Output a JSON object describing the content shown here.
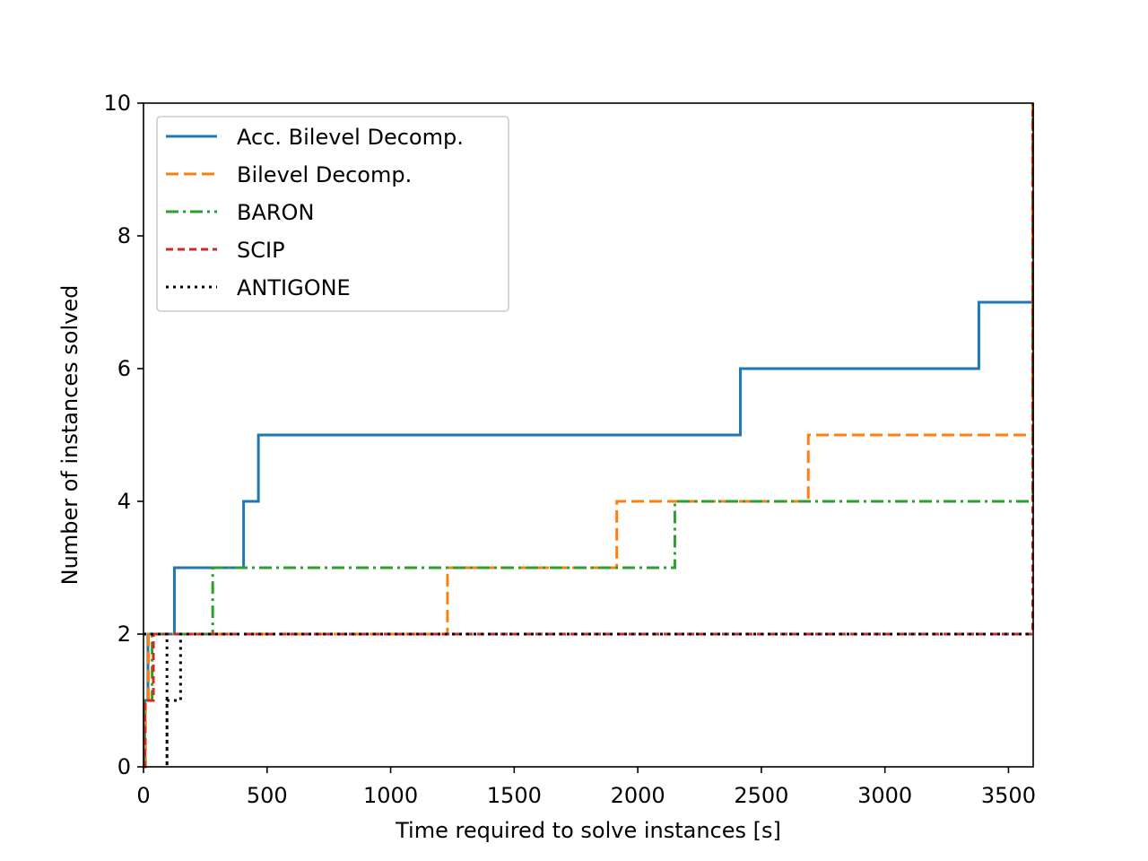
{
  "chart_data": {
    "type": "line",
    "step": true,
    "xlabel": "Time required to solve instances [s]",
    "ylabel": "Number of instances solved",
    "xlim": [
      0,
      3600
    ],
    "ylim": [
      0,
      10
    ],
    "xticks": [
      0,
      500,
      1000,
      1500,
      2000,
      2500,
      3000,
      3500
    ],
    "yticks": [
      0,
      2,
      4,
      6,
      8,
      10
    ],
    "xtick_labels": [
      "0",
      "500",
      "1000",
      "1500",
      "2000",
      "2500",
      "3000",
      "3500"
    ],
    "ytick_labels": [
      "0",
      "2",
      "4",
      "6",
      "8",
      "10"
    ],
    "grid": false,
    "legend_position": "top-left",
    "series": [
      {
        "name": "Acc. Bilevel Decomp.",
        "color": "#1f77b4",
        "dash": "solid",
        "points": [
          [
            0,
            0
          ],
          [
            5,
            0
          ],
          [
            5,
            1
          ],
          [
            18,
            1
          ],
          [
            18,
            2
          ],
          [
            125,
            2
          ],
          [
            125,
            3
          ],
          [
            405,
            3
          ],
          [
            405,
            4
          ],
          [
            465,
            4
          ],
          [
            465,
            5
          ],
          [
            2415,
            5
          ],
          [
            2415,
            6
          ],
          [
            3380,
            6
          ],
          [
            3380,
            7
          ],
          [
            3600,
            7
          ]
        ]
      },
      {
        "name": "Bilevel Decomp.",
        "color": "#ff7f0e",
        "dash": "dashed",
        "points": [
          [
            0,
            0
          ],
          [
            8,
            0
          ],
          [
            8,
            1
          ],
          [
            20,
            1
          ],
          [
            20,
            2
          ],
          [
            1230,
            2
          ],
          [
            1230,
            3
          ],
          [
            1915,
            3
          ],
          [
            1915,
            4
          ],
          [
            2690,
            4
          ],
          [
            2690,
            5
          ],
          [
            3598,
            5
          ],
          [
            3598,
            10
          ]
        ]
      },
      {
        "name": "BARON",
        "color": "#2ca02c",
        "dash": "dashdot",
        "points": [
          [
            0,
            0
          ],
          [
            3,
            0
          ],
          [
            3,
            1
          ],
          [
            35,
            1
          ],
          [
            35,
            2
          ],
          [
            280,
            2
          ],
          [
            280,
            3
          ],
          [
            2150,
            3
          ],
          [
            2150,
            4
          ],
          [
            3598,
            4
          ],
          [
            3598,
            10
          ]
        ]
      },
      {
        "name": "SCIP",
        "color": "#d62728",
        "dash": "densely-dashed",
        "points": [
          [
            0,
            0
          ],
          [
            6,
            0
          ],
          [
            6,
            1
          ],
          [
            40,
            1
          ],
          [
            40,
            2
          ],
          [
            3598,
            2
          ],
          [
            3598,
            10
          ]
        ]
      },
      {
        "name": "ANTIGONE",
        "color": "#000000",
        "dash": "dotted",
        "points": [
          [
            0,
            2
          ],
          [
            0,
            2
          ],
          [
            95,
            2
          ],
          [
            95,
            0
          ],
          [
            95,
            1
          ],
          [
            150,
            1
          ],
          [
            150,
            2
          ],
          [
            3600,
            2
          ]
        ]
      }
    ]
  }
}
